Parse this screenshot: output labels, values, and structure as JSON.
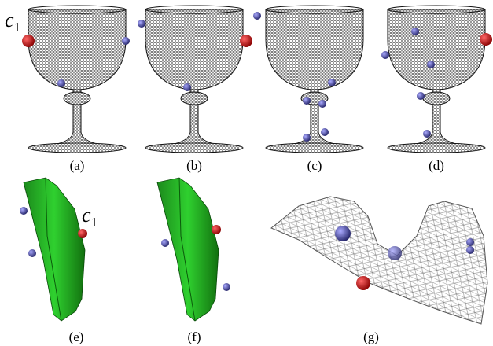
{
  "panels": [
    {
      "caption": "(a)"
    },
    {
      "caption": "(b)"
    },
    {
      "caption": "(c)"
    },
    {
      "caption": "(d)"
    },
    {
      "caption": "(e)"
    },
    {
      "caption": "(f)"
    },
    {
      "caption": "(g)"
    }
  ],
  "annotations": [
    {
      "symbol": "c",
      "subscript": "1"
    },
    {
      "symbol": "c",
      "subscript": "1"
    }
  ]
}
